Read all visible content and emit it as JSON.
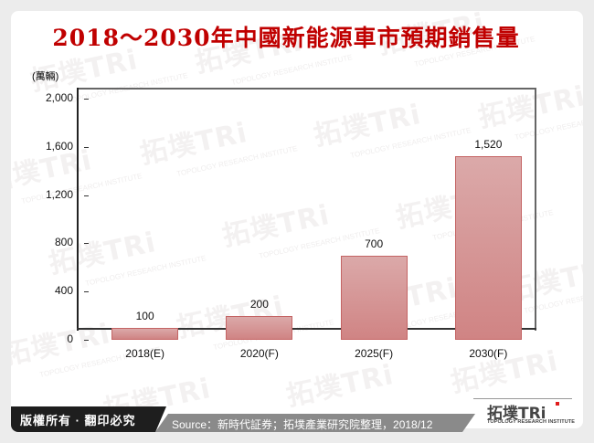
{
  "title": "2018～2030年中國新能源車市預期銷售量",
  "chart_data": {
    "type": "bar",
    "title": "2018～2030年中國新能源車市預期銷售量",
    "xlabel": "",
    "ylabel": "(萬輛)",
    "categories": [
      "2018(E)",
      "2020(F)",
      "2025(F)",
      "2030(F)"
    ],
    "values": [
      100,
      200,
      700,
      1520
    ],
    "value_labels": [
      "100",
      "200",
      "700",
      "1,520"
    ],
    "ylim": [
      0,
      2000
    ],
    "yticks": [
      "0",
      "400",
      "800",
      "1,200",
      "1,600",
      "2,000"
    ],
    "grid": false,
    "legend": null,
    "bar_color": "#d49494"
  },
  "footer": {
    "copyright": "版權所有 · 翻印必究",
    "source": "Source：新時代証券；拓墣產業研究院整理，2018/12"
  },
  "logo": {
    "main": "拓墣TRi",
    "sub": "TOPOLOGY RESEARCH INSTITUTE"
  },
  "colors": {
    "title": "#c00000",
    "bar": "#d49494",
    "footer_dark": "#1e1e1e",
    "footer_gray": "#8a8a8a",
    "logo_accent": "#e01c1c"
  }
}
